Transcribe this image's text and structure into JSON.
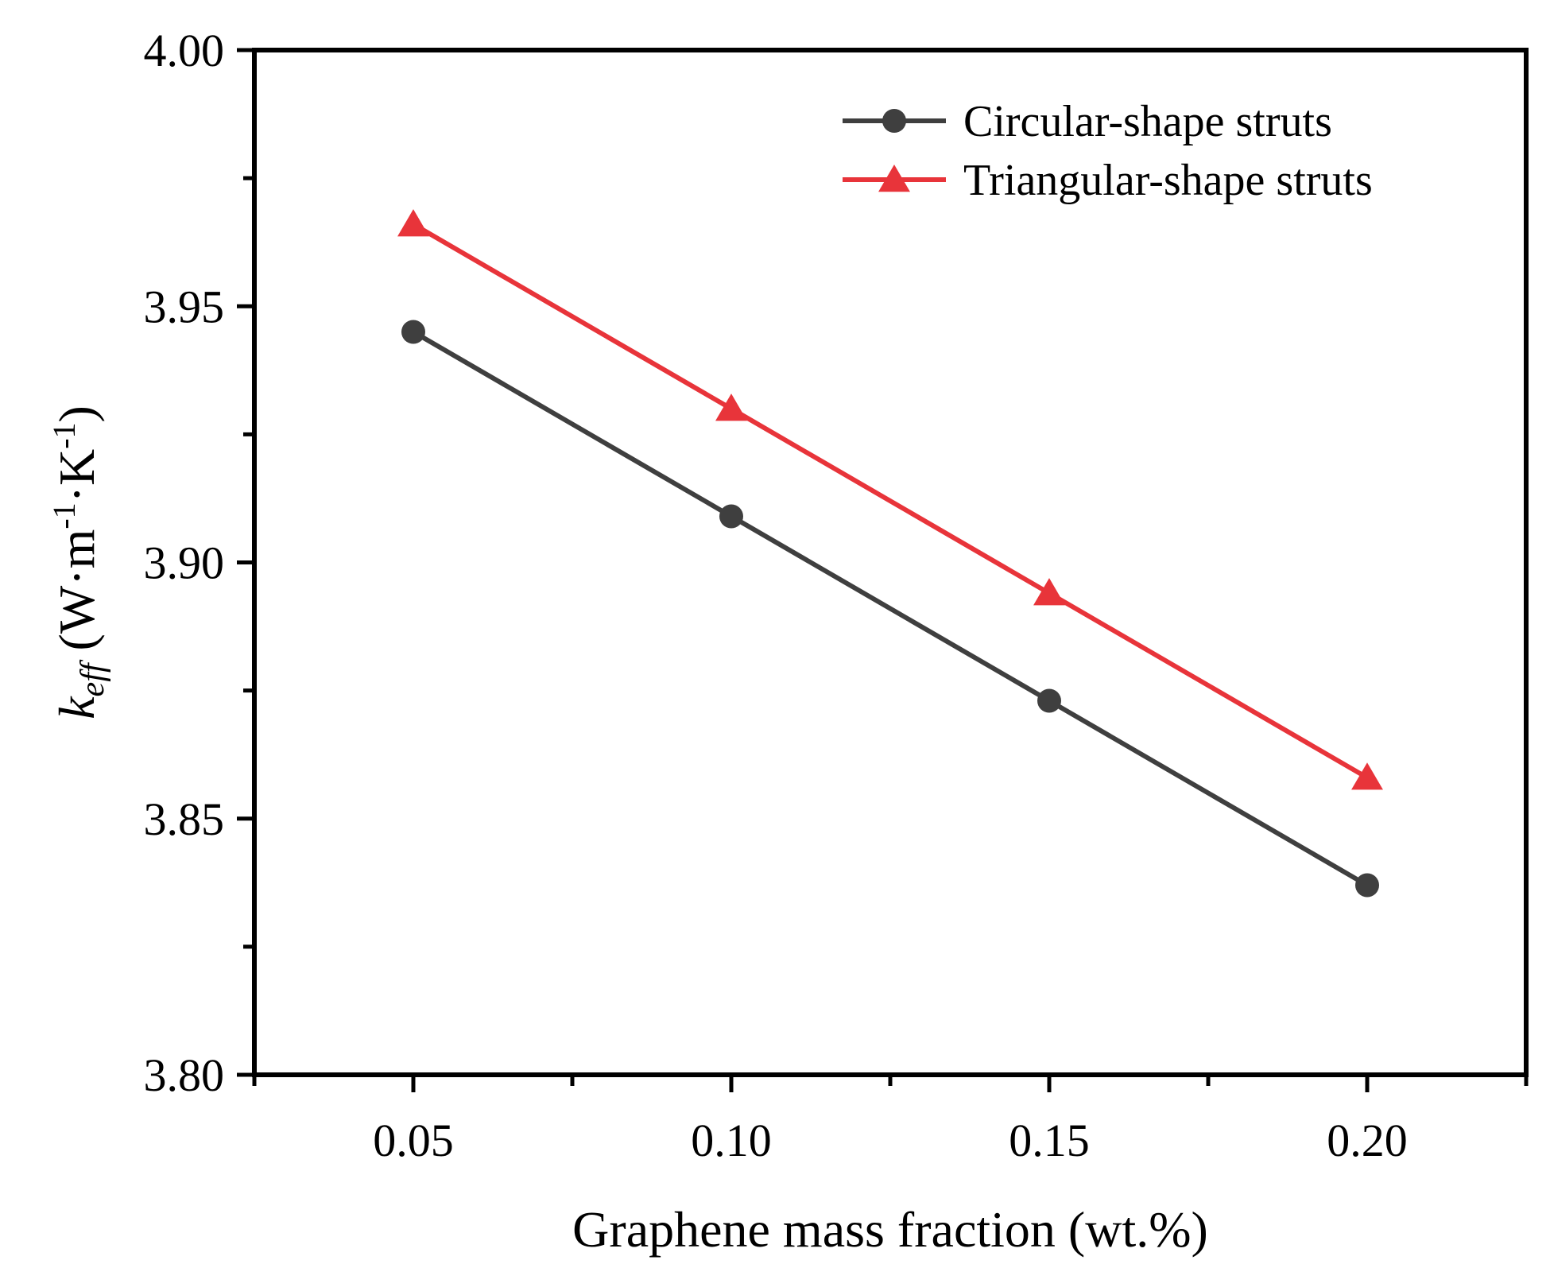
{
  "colors": {
    "circular": "#3f3f3f",
    "triangular": "#e8343a",
    "axis": "#000000"
  },
  "chart_data": {
    "type": "line",
    "xlabel": "Graphene mass fraction (wt.%)",
    "ylabel_parts": [
      "k",
      "eff",
      " (W·m",
      "-1",
      "·K",
      "-1",
      ")"
    ],
    "xlim": [
      0.025,
      0.225
    ],
    "ylim": [
      3.8,
      4.0
    ],
    "x_ticks": [
      0.05,
      0.1,
      0.15,
      0.2
    ],
    "x_tick_labels": [
      "0.05",
      "0.10",
      "0.15",
      "0.20"
    ],
    "y_ticks": [
      3.8,
      3.85,
      3.9,
      3.95,
      4.0
    ],
    "y_tick_labels": [
      "3.80",
      "3.85",
      "3.90",
      "3.95",
      "4.00"
    ],
    "x_minor_ticks": [
      0.025,
      0.075,
      0.125,
      0.175,
      0.225
    ],
    "y_minor_ticks": [
      3.825,
      3.875,
      3.925,
      3.975
    ],
    "grid": false,
    "legend_position": "top-right",
    "x": [
      0.05,
      0.1,
      0.15,
      0.2
    ],
    "series": [
      {
        "name": "Circular-shape struts",
        "marker": "circle",
        "color": "#3f3f3f",
        "values": [
          3.945,
          3.909,
          3.873,
          3.837
        ]
      },
      {
        "name": "Triangular-shape struts",
        "marker": "triangle",
        "color": "#e8343a",
        "values": [
          3.966,
          3.93,
          3.894,
          3.858
        ]
      }
    ]
  }
}
